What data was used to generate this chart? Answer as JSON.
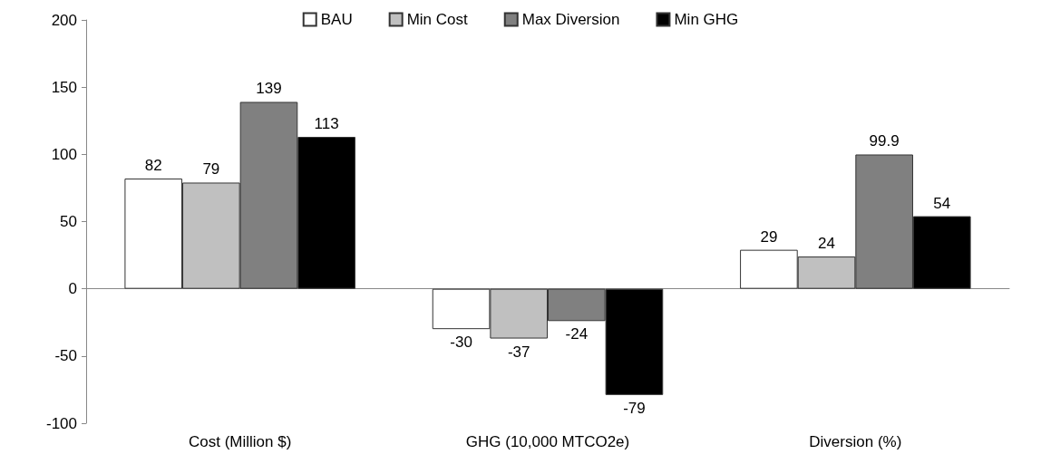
{
  "chart_data": {
    "type": "bar",
    "categories": [
      "Cost (Million $)",
      "GHG (10,000 MTCO2e)",
      "Diversion (%)"
    ],
    "series": [
      {
        "name": "BAU",
        "color": "#ffffff",
        "values": [
          82,
          -30,
          29
        ]
      },
      {
        "name": "Min Cost",
        "color": "#c0c0c0",
        "values": [
          79,
          -37,
          24
        ]
      },
      {
        "name": "Max Diversion",
        "color": "#808080",
        "values": [
          139,
          -24,
          99.9
        ]
      },
      {
        "name": "Min GHG",
        "color": "#000000",
        "values": [
          113,
          -79,
          54
        ]
      }
    ],
    "ylim": [
      -100,
      200
    ],
    "yticks": [
      -100,
      -50,
      0,
      50,
      100,
      150,
      200
    ],
    "data_labels": true,
    "legend": "top"
  }
}
